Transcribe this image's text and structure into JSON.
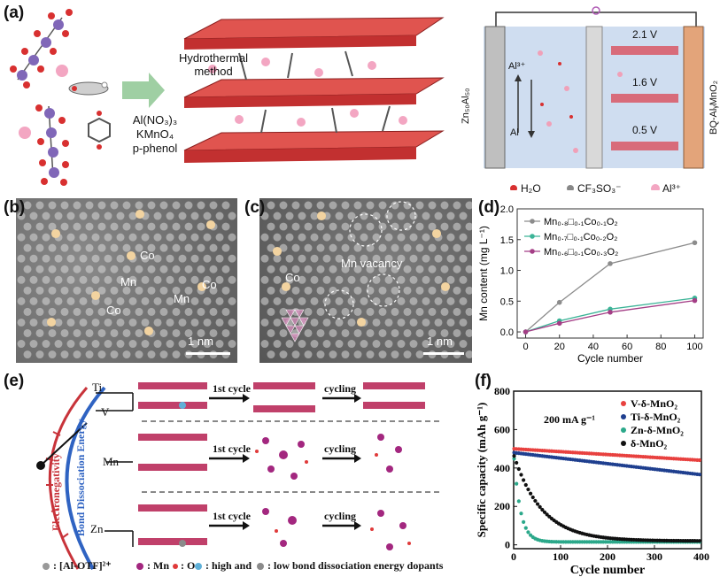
{
  "panel_labels": [
    "(a)",
    "(b)",
    "(c)",
    "(d)",
    "(e)",
    "(f)"
  ],
  "panel_a": {
    "method_line1": "Hydrothermal",
    "method_line2": "method",
    "reagents": [
      "Al(NO₃)₃",
      "KMnO₄",
      "p-phenol"
    ],
    "left_electrode": "Zn₅₀Al₅₀",
    "right_electrode": "BQ-AlᵧMnO₂",
    "ion_up": "Al³⁺",
    "ion_down": "Al",
    "voltages": [
      "2.1 V",
      "1.6 V",
      "0.5 V"
    ],
    "legend": [
      "H₂O",
      "CF₃SO₃⁻",
      "Al³⁺"
    ]
  },
  "panel_b": {
    "labels": [
      "Co",
      "Mn",
      "Mn",
      "Co",
      "Co"
    ],
    "scale": "1 nm"
  },
  "panel_c": {
    "labels": [
      "Co",
      "Mn vacancy"
    ],
    "scale": "1 nm"
  },
  "panel_e": {
    "elements": [
      "Ti",
      "V",
      "Mn",
      "Zn"
    ],
    "axis_left": "Electronegativity",
    "axis_right": "Bond Dissociation Energy",
    "step1": "1st cycle",
    "step2": "cycling",
    "legend_complex": ": [Al-OTF]²⁺",
    "legend_mn": ": Mn",
    "legend_o": ": O",
    "legend_dopants": ": high and",
    "legend_dopants2": ": low bond dissociation energy dopants"
  },
  "chart_data": [
    {
      "id": "d",
      "type": "line",
      "xlabel": "Cycle number",
      "ylabel": "Mn content (mg L⁻¹)",
      "xlim": [
        -5,
        105
      ],
      "ylim": [
        -0.1,
        2.0
      ],
      "xticks": [
        0,
        20,
        40,
        60,
        80,
        100
      ],
      "yticks": [
        0.0,
        0.5,
        1.0,
        1.5,
        2.0
      ],
      "x": [
        0,
        20,
        50,
        100
      ],
      "series": [
        {
          "name": "Mn₀.₈□₀.₁Co₀.₁O₂",
          "color": "#8c8c8c",
          "values": [
            0.0,
            0.48,
            1.11,
            1.45
          ]
        },
        {
          "name": "Mn₀.₇□₀.₁Co₀.₂O₂",
          "color": "#3cb497",
          "values": [
            0.0,
            0.18,
            0.37,
            0.55
          ]
        },
        {
          "name": "Mn₀.₆□₀.₁Co₀.₃O₂",
          "color": "#a43e86",
          "values": [
            0.0,
            0.14,
            0.32,
            0.51
          ]
        }
      ]
    },
    {
      "id": "f",
      "type": "scatter",
      "title": "200 mA g⁻¹",
      "xlabel": "Cycle number",
      "ylabel": "Specific capacity (mAh g⁻¹)",
      "xlim": [
        0,
        400
      ],
      "ylim": [
        -20,
        800
      ],
      "xticks": [
        0,
        100,
        200,
        300,
        400
      ],
      "yticks": [
        0,
        200,
        400,
        600,
        800
      ],
      "series": [
        {
          "name": "V-δ-MnO₂",
          "color": "#e8413f",
          "start": 500,
          "end": 440,
          "shape": "slow"
        },
        {
          "name": "Ti-δ-MnO₂",
          "color": "#1f3f8f",
          "start": 480,
          "end": 365,
          "shape": "slow"
        },
        {
          "name": "Zn-δ-MnO₂",
          "color": "#2ba88a",
          "start": 480,
          "end": 15,
          "shape": "fast"
        },
        {
          "name": "δ-MnO₂",
          "color": "#111111",
          "start": 470,
          "end": 20,
          "shape": "medium"
        }
      ]
    }
  ]
}
